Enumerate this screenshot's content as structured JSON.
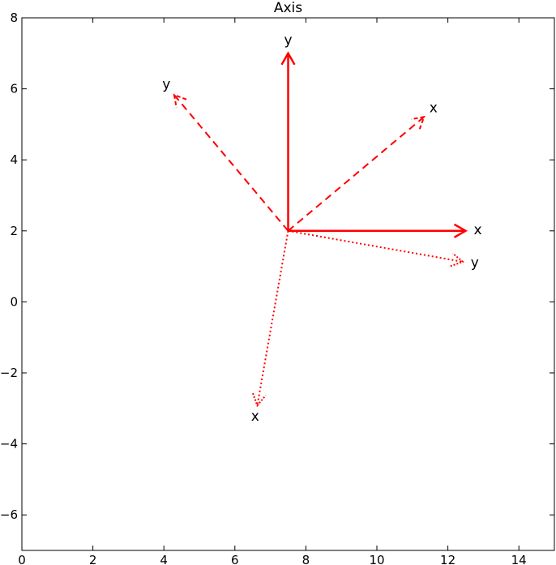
{
  "chart_data": {
    "type": "line",
    "title": "Axis",
    "xlabel": "",
    "ylabel": "",
    "xlim": [
      0,
      15
    ],
    "ylim": [
      -7,
      8
    ],
    "xticks": [
      0,
      2,
      4,
      6,
      8,
      10,
      12,
      14
    ],
    "yticks": [
      -6,
      -4,
      -2,
      0,
      2,
      4,
      6,
      8
    ],
    "grid": false,
    "color": "#ff0000",
    "origin": [
      7.5,
      2
    ],
    "arrows": [
      {
        "label": "x",
        "style": "solid",
        "end": [
          12.5,
          2
        ]
      },
      {
        "label": "y",
        "style": "solid",
        "end": [
          7.5,
          7
        ]
      },
      {
        "label": "x",
        "style": "dashed",
        "end": [
          11.33,
          5.21
        ]
      },
      {
        "label": "y",
        "style": "dashed",
        "end": [
          4.29,
          5.83
        ]
      },
      {
        "label": "x",
        "style": "dotted",
        "end": [
          6.63,
          -2.92
        ]
      },
      {
        "label": "y",
        "style": "dotted",
        "end": [
          12.42,
          1.13
        ]
      }
    ]
  }
}
